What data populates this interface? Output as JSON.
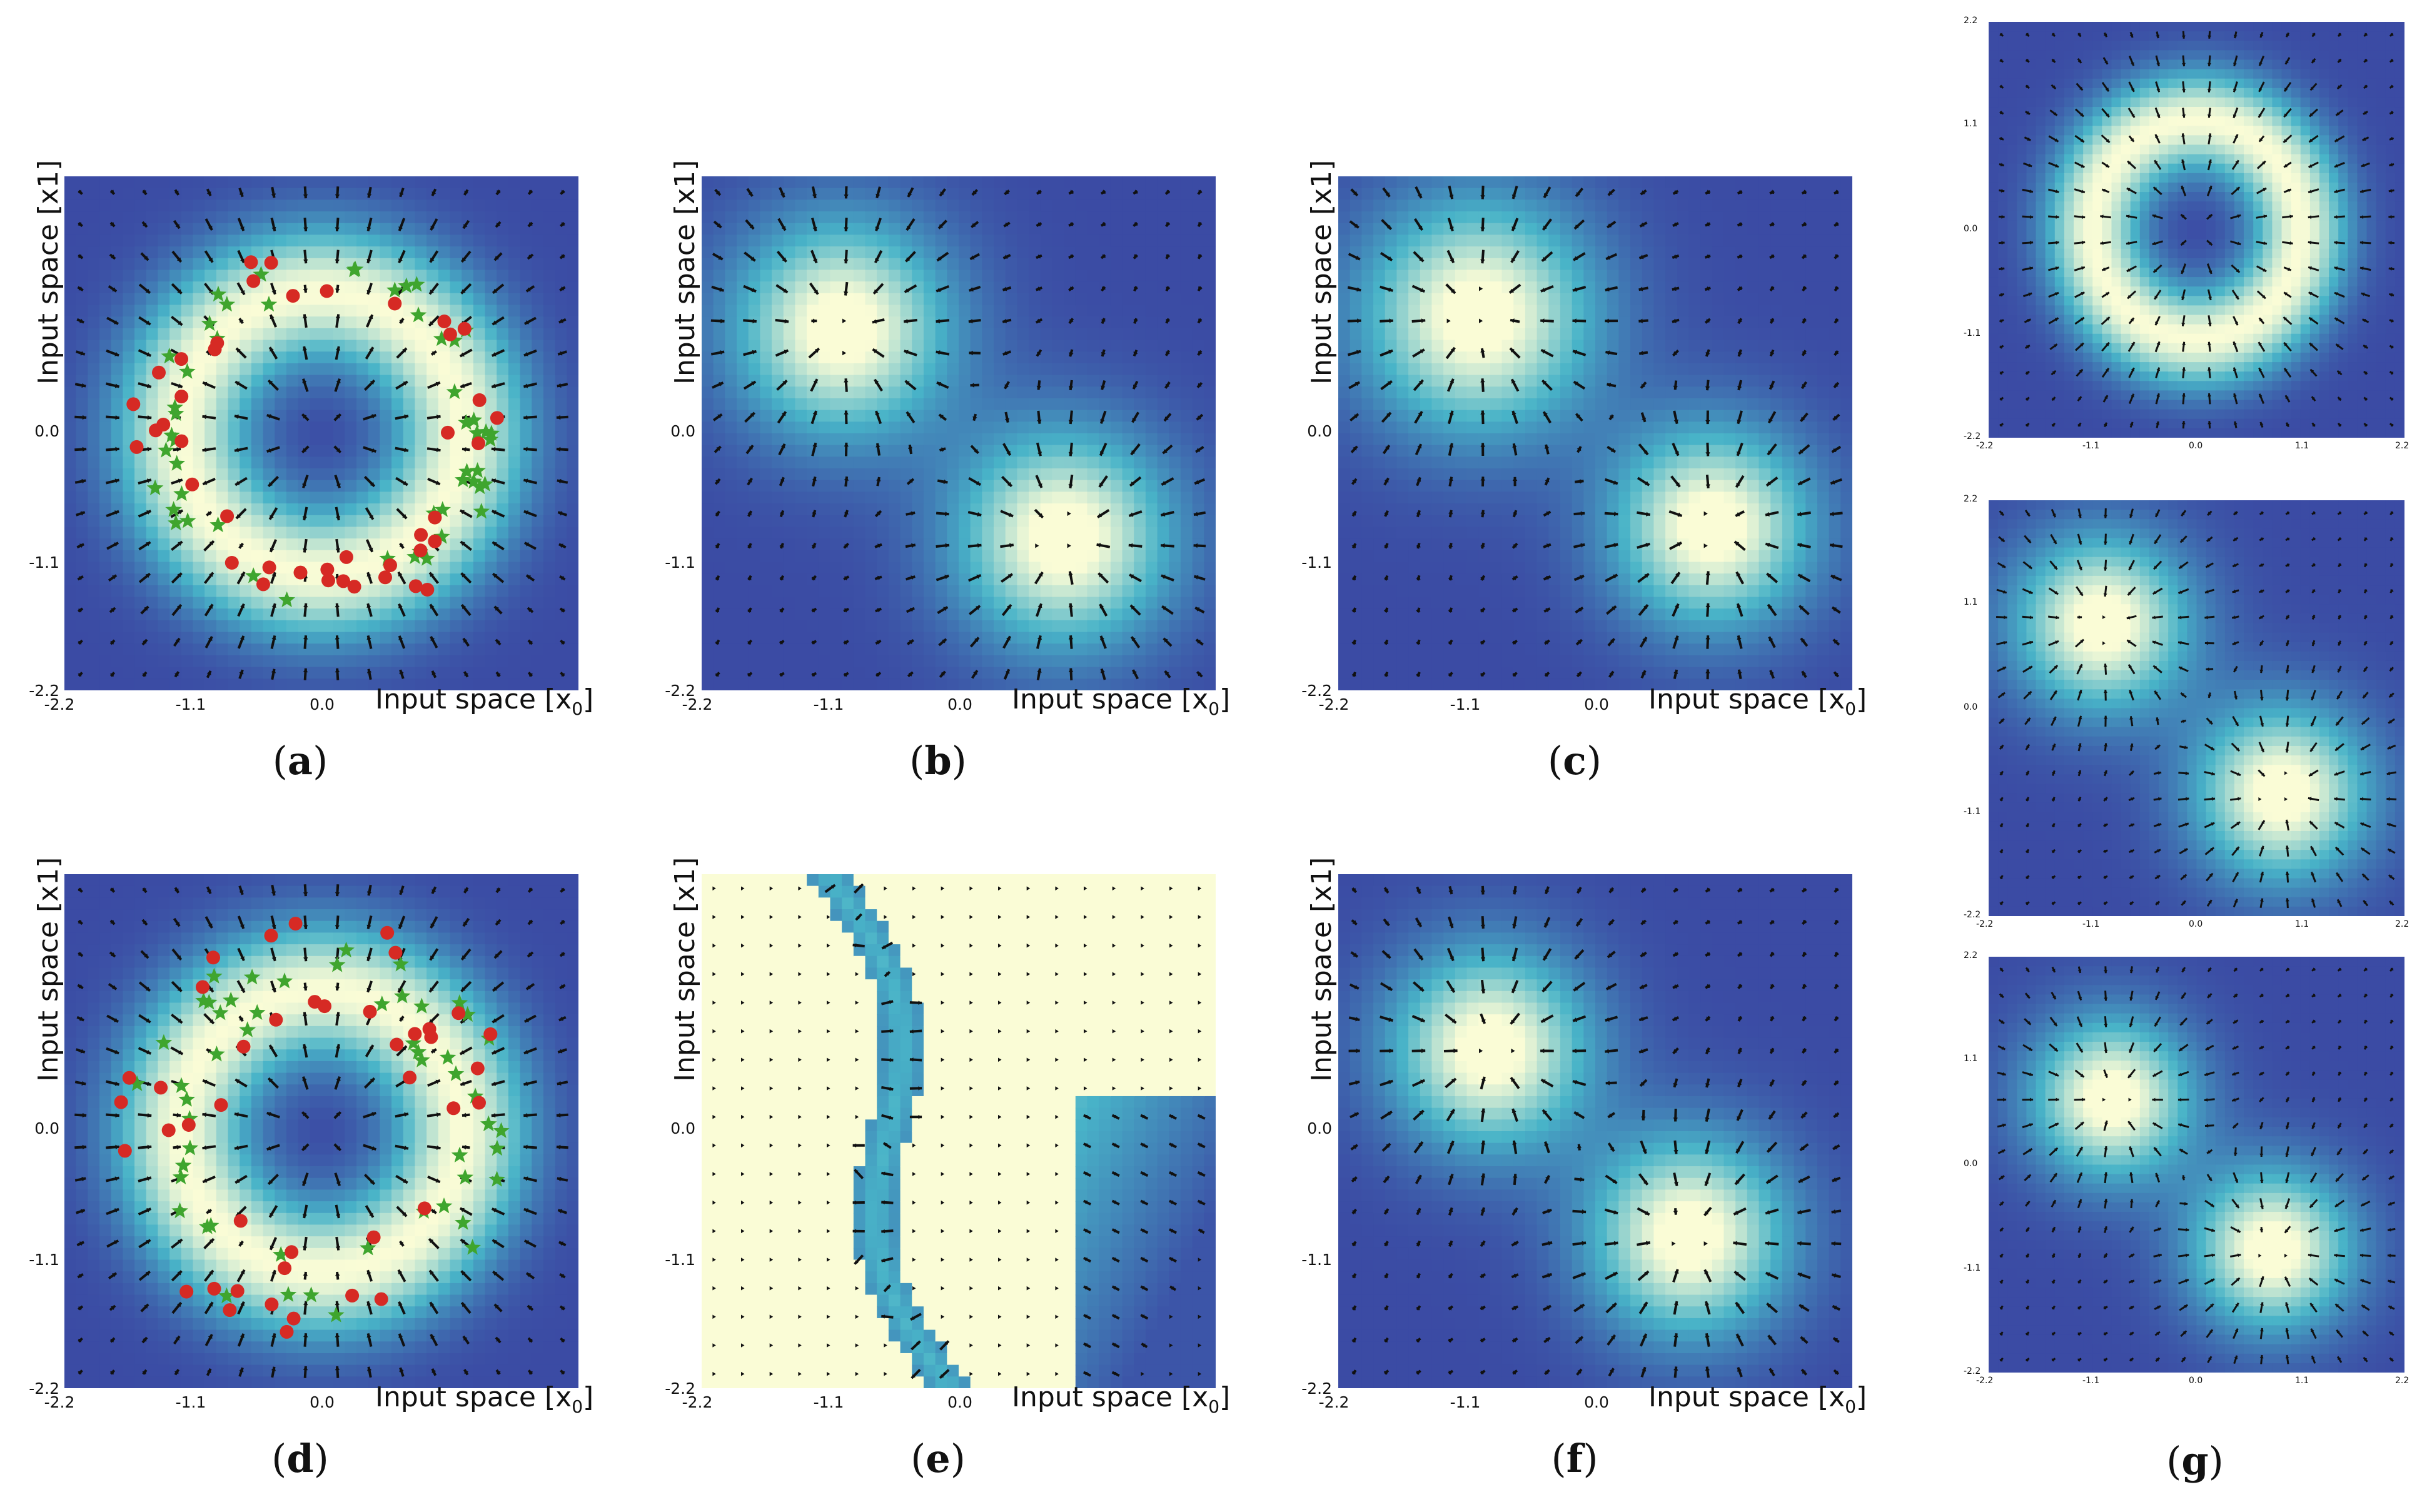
{
  "figure": {
    "xlabel": "Input space [x",
    "xlabel_sub": "0",
    "xlabel_close": "]",
    "ylabel": "Input space [x1]",
    "ticks_main": [
      "-2.2",
      "-1.1",
      "0.0"
    ],
    "ticks_small": [
      "-2.2",
      "-1.1",
      "0.0",
      "1.1",
      "2.2"
    ],
    "captions": [
      "a",
      "b",
      "c",
      "d",
      "e",
      "f",
      "g"
    ],
    "colors": {
      "high": "#fafcd6",
      "mid": "#48b3c8",
      "low": "#3b4ba4",
      "arrow": "#111111",
      "class_a": "#d62a24",
      "class_b": "#3fa52e"
    }
  },
  "chart_data": [
    {
      "panel": "a",
      "type": "heatmap",
      "field": "ring",
      "axis_range": [
        -2.2,
        2.2
      ],
      "points": "ring-samples",
      "legend": null
    },
    {
      "panel": "b",
      "type": "heatmap",
      "field": "two-lobes-diagonal",
      "axis_range": [
        -2.2,
        2.2
      ]
    },
    {
      "panel": "c",
      "type": "heatmap",
      "field": "two-lobes-offset",
      "axis_range": [
        -2.2,
        2.2
      ]
    },
    {
      "panel": "d",
      "type": "heatmap",
      "field": "ring",
      "axis_range": [
        -2.2,
        2.2
      ],
      "points": "ring-samples-noisy"
    },
    {
      "panel": "e",
      "type": "heatmap",
      "field": "decision-boundary",
      "axis_range": [
        -2.2,
        2.2
      ]
    },
    {
      "panel": "f",
      "type": "heatmap",
      "field": "two-lobes-diagonal-tight",
      "axis_range": [
        -2.2,
        2.2
      ]
    },
    {
      "panel": "g1",
      "type": "heatmap",
      "field": "ring-tilted",
      "axis_range": [
        -2.2,
        2.2
      ]
    },
    {
      "panel": "g2",
      "type": "heatmap",
      "field": "two-lobes-diagonal",
      "axis_range": [
        -2.2,
        2.2
      ]
    },
    {
      "panel": "g3",
      "type": "heatmap",
      "field": "two-lobes-diagonal-tight",
      "axis_range": [
        -2.2,
        2.2
      ]
    }
  ]
}
